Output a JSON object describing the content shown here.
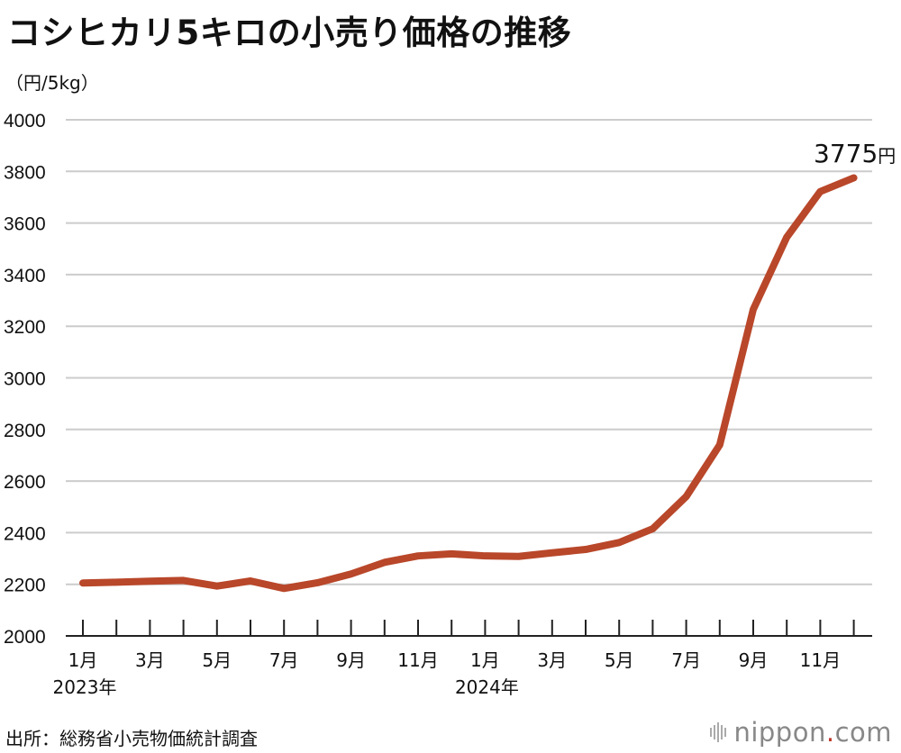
{
  "title": "コシヒカリ5キロの小売り価格の推移",
  "unit_label": "（円/5kg）",
  "source": "出所：総務省小売物価統計調査",
  "logo": {
    "name": "nippon",
    "dot": ".",
    "suffix": "com"
  },
  "colors": {
    "line": "#b9472a",
    "grid": "#cccccc",
    "axis": "#222222"
  },
  "chart_data": {
    "type": "line",
    "title": "コシヒカリ5キロの小売り価格の推移",
    "ylabel": "（円/5kg）",
    "ylim": [
      2000,
      4000
    ],
    "yticks": [
      2000,
      2200,
      2400,
      2600,
      2800,
      3000,
      3200,
      3400,
      3600,
      3800,
      4000
    ],
    "x": [
      "2023-01",
      "2023-02",
      "2023-03",
      "2023-04",
      "2023-05",
      "2023-06",
      "2023-07",
      "2023-08",
      "2023-09",
      "2023-10",
      "2023-11",
      "2023-12",
      "2024-01",
      "2024-02",
      "2024-03",
      "2024-04",
      "2024-05",
      "2024-06",
      "2024-07",
      "2024-08",
      "2024-09",
      "2024-10",
      "2024-11",
      "2024-12"
    ],
    "xtick_labels": [
      "1月",
      "",
      "3月",
      "",
      "5月",
      "",
      "7月",
      "",
      "9月",
      "",
      "11月",
      "",
      "1月",
      "",
      "3月",
      "",
      "5月",
      "",
      "7月",
      "",
      "9月",
      "",
      "11月",
      ""
    ],
    "year_labels": [
      {
        "index": 0,
        "label": "2023年"
      },
      {
        "index": 12,
        "label": "2024年"
      }
    ],
    "series": [
      {
        "name": "コシヒカリ5キロ",
        "values": [
          2205,
          2208,
          2212,
          2215,
          2193,
          2213,
          2184,
          2206,
          2240,
          2285,
          2310,
          2318,
          2310,
          2308,
          2322,
          2335,
          2362,
          2415,
          2540,
          2740,
          3265,
          3545,
          3722,
          3775
        ]
      }
    ],
    "annotation": {
      "index": 23,
      "value": "3775",
      "unit": "円"
    }
  }
}
